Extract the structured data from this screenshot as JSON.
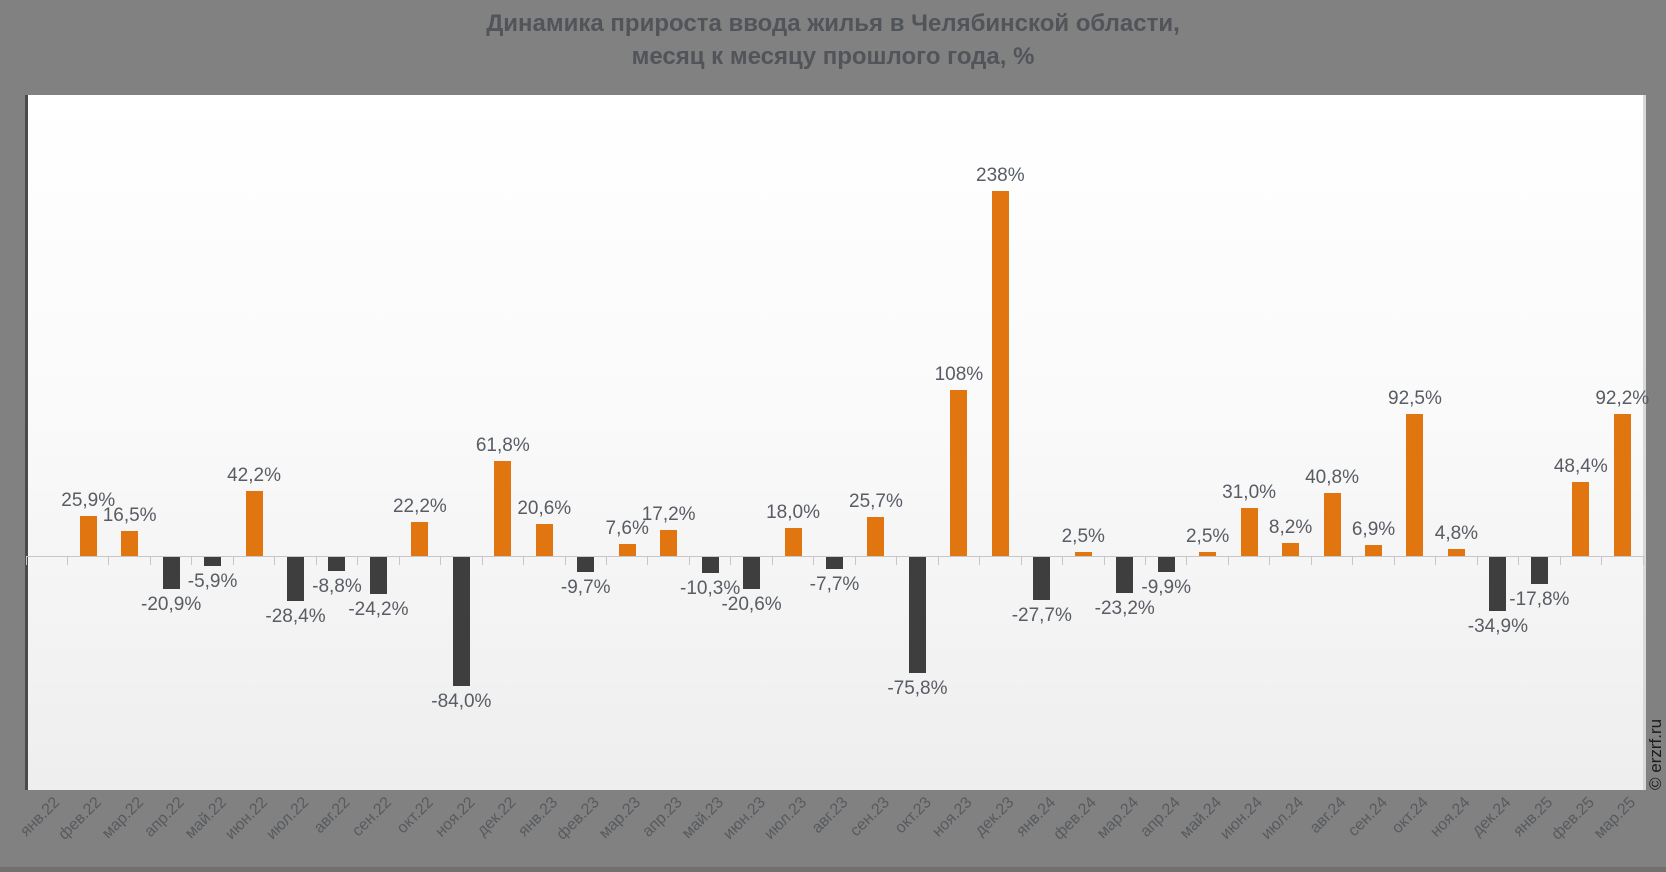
{
  "page": {
    "background_color": "#818181",
    "watermark": "© erzrf.ru"
  },
  "chart_data": {
    "type": "bar",
    "title": "Динамика прироста ввода жилья в Челябинской области, месяц к месяцу прошлого года, %",
    "title_line1": "Динамика прироста ввода жилья в Челябинской области,",
    "title_line2": "месяц к месяцу прошлого года, %",
    "xlabel": "",
    "ylabel": "",
    "legend": false,
    "grid": false,
    "baseline": 0,
    "ylim": [
      -153,
      301
    ],
    "positive_color": "#e1750f",
    "negative_color": "#3e3e3e",
    "categories": [
      "янв.22",
      "фев.22",
      "мар.22",
      "апр.22",
      "май.22",
      "июн.22",
      "июл.22",
      "авг.22",
      "сен.22",
      "окт.22",
      "ноя.22",
      "дек.22",
      "янв.23",
      "фев.23",
      "мар.23",
      "апр.23",
      "май.23",
      "июн.23",
      "июл.23",
      "авг.23",
      "сен.23",
      "окт.23",
      "ноя.23",
      "дек.23",
      "янв.24",
      "фев.24",
      "мар.24",
      "апр.24",
      "май.24",
      "июн.24",
      "июл.24",
      "авг.24",
      "сен.24",
      "окт.24",
      "ноя.24",
      "дек.24",
      "янв.25",
      "фев.25",
      "мар.25"
    ],
    "values": [
      null,
      25.9,
      16.5,
      -20.9,
      -5.9,
      42.2,
      -28.4,
      -8.8,
      -24.2,
      22.2,
      -84.0,
      61.8,
      20.6,
      -9.7,
      7.6,
      17.2,
      -10.3,
      -20.6,
      18.0,
      -7.7,
      25.7,
      -75.8,
      108,
      238,
      -27.7,
      2.5,
      -23.2,
      -9.9,
      2.5,
      31.0,
      8.2,
      40.8,
      6.9,
      92.5,
      4.8,
      -34.9,
      -17.8,
      48.4,
      92.2
    ],
    "value_labels": [
      "",
      "25,9%",
      "16,5%",
      "-20,9%",
      "-5,9%",
      "42,2%",
      "-28,4%",
      "-8,8%",
      "-24,2%",
      "22,2%",
      "-84,0%",
      "61,8%",
      "20,6%",
      "-9,7%",
      "7,6%",
      "17,2%",
      "-10,3%",
      "-20,6%",
      "18,0%",
      "-7,7%",
      "25,7%",
      "-75,8%",
      "108%",
      "238%",
      "-27,7%",
      "2,5%",
      "-23,2%",
      "-9,9%",
      "2,5%",
      "31,0%",
      "8,2%",
      "40,8%",
      "6,9%",
      "92,5%",
      "4,8%",
      "-34,9%",
      "-17,8%",
      "48,4%",
      "92,2%"
    ]
  }
}
